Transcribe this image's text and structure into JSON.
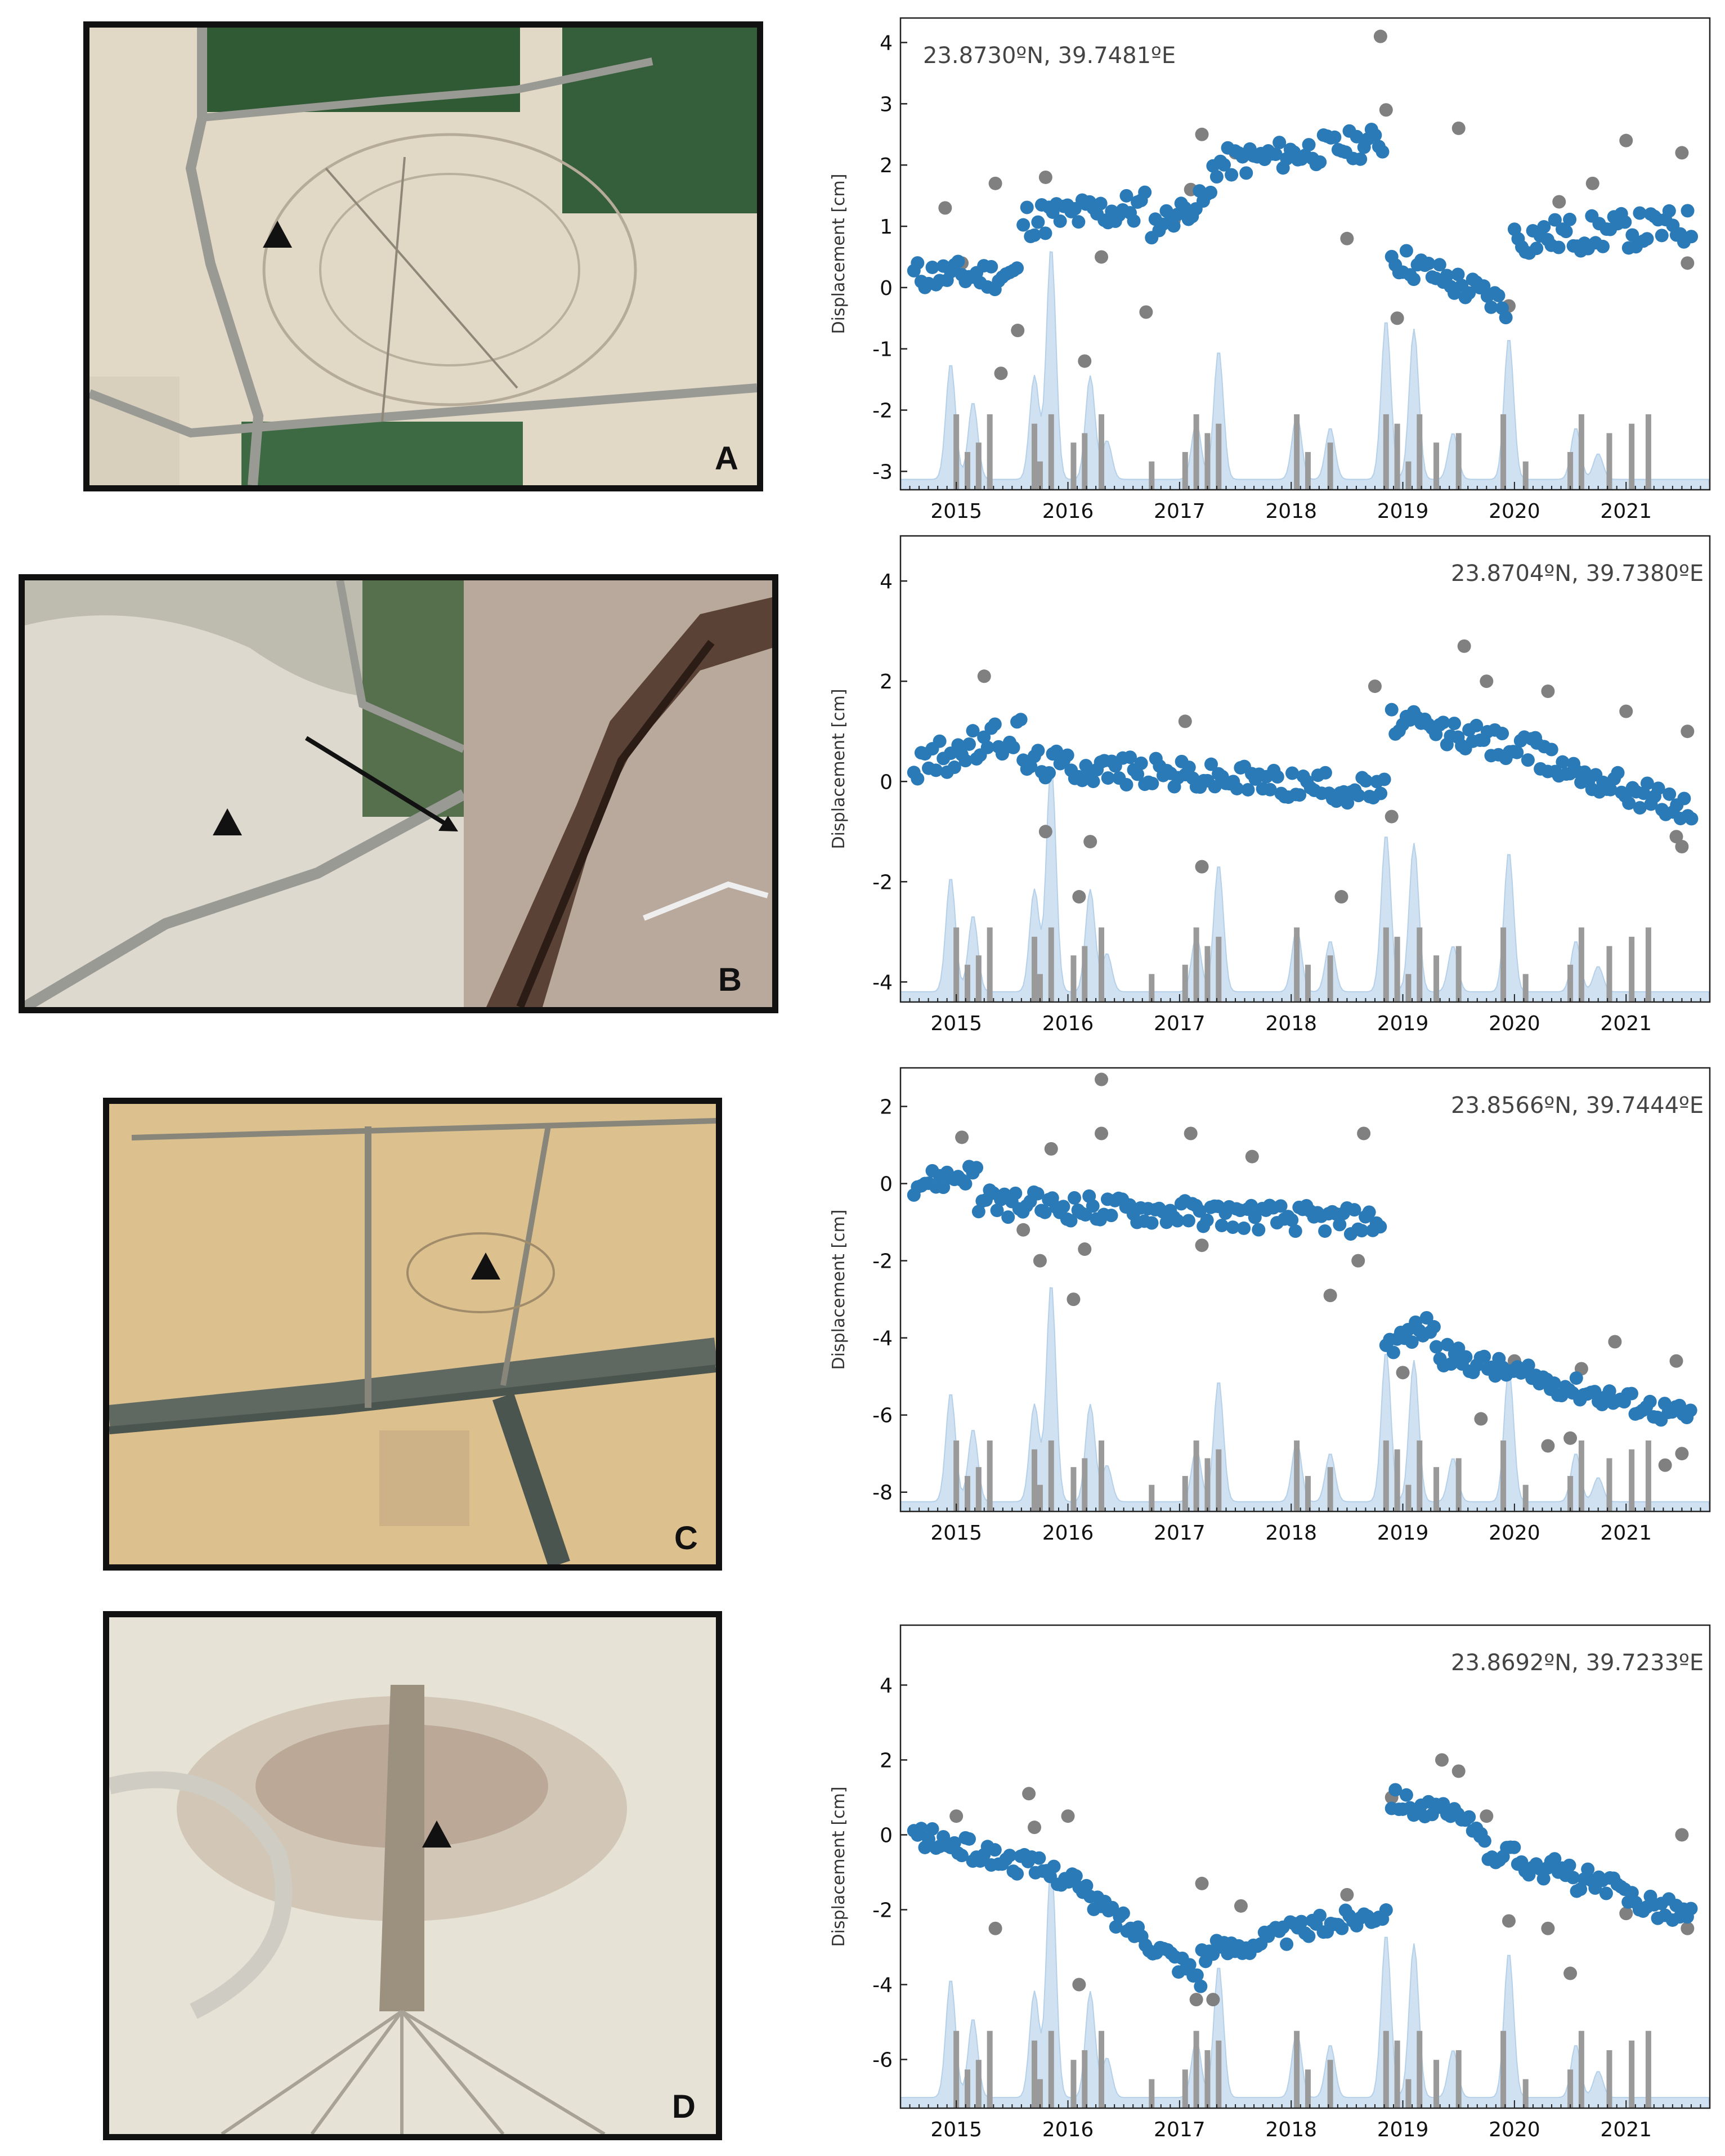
{
  "panels": [
    {
      "letter": "A"
    },
    {
      "letter": "B"
    },
    {
      "letter": "C"
    },
    {
      "letter": "D"
    }
  ],
  "colors": {
    "blue": "#2a7ab8",
    "gray": "#808080",
    "shade": "#c8dcf0",
    "shadeLine": "#a9c8e6",
    "bar": "#9a9a9a"
  },
  "chart_data": [
    {
      "type": "scatter",
      "title": "23.8730ºN, 39.7481ºE",
      "ylabel": "Displacement [cm]",
      "ylim": [
        -3.3,
        4.4
      ],
      "yticks": [
        -3,
        -2,
        -1,
        0,
        1,
        2,
        3,
        4
      ],
      "xlim": [
        2014.5,
        2021.75
      ],
      "xticks": [
        2015,
        2016,
        2017,
        2018,
        2019,
        2020,
        2021
      ],
      "series": [
        {
          "name": "blue",
          "segments": [
            {
              "x0": 2014.62,
              "x1": 2015.55,
              "y0": 0.2,
              "y1": 0.2,
              "amp": 0.25
            },
            {
              "x0": 2015.6,
              "x1": 2016.7,
              "y0": 1.1,
              "y1": 1.3,
              "amp": 0.3
            },
            {
              "x0": 2016.75,
              "x1": 2017.3,
              "y0": 1.0,
              "y1": 1.5,
              "amp": 0.2
            },
            {
              "x0": 2017.3,
              "x1": 2018.85,
              "y0": 2.0,
              "y1": 2.4,
              "amp": 0.25
            },
            {
              "x0": 2018.9,
              "x1": 2019.95,
              "y0": 0.5,
              "y1": -0.3,
              "amp": 0.25
            },
            {
              "x0": 2020.0,
              "x1": 2021.6,
              "y0": 0.8,
              "y1": 1.0,
              "amp": 0.3
            }
          ]
        },
        {
          "name": "gray",
          "points": [
            [
              2014.9,
              1.3
            ],
            [
              2015.05,
              0.4
            ],
            [
              2015.35,
              1.7
            ],
            [
              2015.4,
              -1.4
            ],
            [
              2015.55,
              -0.7
            ],
            [
              2015.8,
              1.8
            ],
            [
              2016.15,
              -1.2
            ],
            [
              2016.3,
              0.5
            ],
            [
              2016.7,
              -0.4
            ],
            [
              2016.95,
              1.1
            ],
            [
              2017.1,
              1.6
            ],
            [
              2017.2,
              2.5
            ],
            [
              2017.5,
              2.2
            ],
            [
              2018.5,
              0.8
            ],
            [
              2018.8,
              4.1
            ],
            [
              2018.85,
              2.9
            ],
            [
              2018.95,
              -0.5
            ],
            [
              2019.5,
              2.6
            ],
            [
              2019.95,
              -0.3
            ],
            [
              2020.4,
              1.4
            ],
            [
              2020.7,
              1.7
            ],
            [
              2021.0,
              2.4
            ],
            [
              2021.5,
              2.2
            ],
            [
              2021.55,
              0.4
            ]
          ]
        }
      ]
    },
    {
      "type": "scatter",
      "title": "23.8704ºN, 39.7380ºE",
      "ylabel": "Displacement [cm]",
      "ylim": [
        -4.4,
        4.9
      ],
      "yticks": [
        -4,
        -2,
        0,
        2,
        4
      ],
      "xlim": [
        2014.5,
        2021.75
      ],
      "xticks": [
        2015,
        2016,
        2017,
        2018,
        2019,
        2020,
        2021
      ],
      "series": [
        {
          "name": "blue",
          "segments": [
            {
              "x0": 2014.62,
              "x1": 2015.6,
              "y0": 0.3,
              "y1": 1.0,
              "amp": 0.35
            },
            {
              "x0": 2015.6,
              "x1": 2018.85,
              "y0": 0.4,
              "y1": -0.2,
              "amp": 0.3
            },
            {
              "x0": 2018.9,
              "x1": 2020.2,
              "y0": 1.2,
              "y1": 0.6,
              "amp": 0.3
            },
            {
              "x0": 2020.2,
              "x1": 2021.6,
              "y0": 0.5,
              "y1": -0.6,
              "amp": 0.3
            }
          ]
        },
        {
          "name": "gray",
          "points": [
            [
              2015.25,
              2.1
            ],
            [
              2015.8,
              -1.0
            ],
            [
              2016.1,
              -2.3
            ],
            [
              2016.2,
              -1.2
            ],
            [
              2017.05,
              1.2
            ],
            [
              2017.2,
              -1.7
            ],
            [
              2018.45,
              -2.3
            ],
            [
              2018.75,
              1.9
            ],
            [
              2018.9,
              -0.7
            ],
            [
              2019.55,
              2.7
            ],
            [
              2019.75,
              2.0
            ],
            [
              2020.3,
              1.8
            ],
            [
              2021.0,
              1.4
            ],
            [
              2021.45,
              -1.1
            ],
            [
              2021.55,
              1.0
            ],
            [
              2021.5,
              -1.3
            ]
          ]
        }
      ]
    },
    {
      "type": "scatter",
      "title": "23.8566ºN, 39.7444ºE",
      "ylabel": "Displacement [cm]",
      "ylim": [
        -8.5,
        3.0
      ],
      "yticks": [
        -8,
        -6,
        -4,
        -2,
        0,
        2
      ],
      "xlim": [
        2014.5,
        2021.75
      ],
      "xticks": [
        2015,
        2016,
        2017,
        2018,
        2019,
        2020,
        2021
      ],
      "series": [
        {
          "name": "blue",
          "segments": [
            {
              "x0": 2014.62,
              "x1": 2015.2,
              "y0": 0.0,
              "y1": 0.3,
              "amp": 0.3
            },
            {
              "x0": 2015.2,
              "x1": 2018.8,
              "y0": -0.5,
              "y1": -1.0,
              "amp": 0.35
            },
            {
              "x0": 2018.85,
              "x1": 2019.3,
              "y0": -4.2,
              "y1": -3.6,
              "amp": 0.3
            },
            {
              "x0": 2019.3,
              "x1": 2021.6,
              "y0": -4.4,
              "y1": -6.1,
              "amp": 0.3
            }
          ]
        },
        {
          "name": "gray",
          "points": [
            [
              2015.05,
              1.2
            ],
            [
              2015.6,
              -1.2
            ],
            [
              2015.75,
              -2.0
            ],
            [
              2015.85,
              0.9
            ],
            [
              2016.05,
              -3.0
            ],
            [
              2016.3,
              2.7
            ],
            [
              2016.3,
              1.3
            ],
            [
              2016.15,
              -1.7
            ],
            [
              2017.1,
              1.3
            ],
            [
              2017.2,
              -1.6
            ],
            [
              2017.65,
              0.7
            ],
            [
              2018.35,
              -2.9
            ],
            [
              2018.6,
              -2.0
            ],
            [
              2018.65,
              1.3
            ],
            [
              2019.0,
              -4.9
            ],
            [
              2019.7,
              -6.1
            ],
            [
              2020.0,
              -4.6
            ],
            [
              2020.3,
              -6.8
            ],
            [
              2020.5,
              -6.6
            ],
            [
              2020.6,
              -4.8
            ],
            [
              2020.9,
              -4.1
            ],
            [
              2021.35,
              -7.3
            ],
            [
              2021.45,
              -4.6
            ],
            [
              2021.5,
              -7.0
            ]
          ]
        }
      ]
    },
    {
      "type": "scatter",
      "title": "23.8692ºN, 39.7233ºE",
      "ylabel": "Displacement [cm]",
      "ylim": [
        -7.3,
        5.6
      ],
      "yticks": [
        -6,
        -4,
        -2,
        0,
        2,
        4
      ],
      "xlim": [
        2014.5,
        2021.75
      ],
      "xticks": [
        2015,
        2016,
        2017,
        2018,
        2019,
        2020,
        2021
      ],
      "series": [
        {
          "name": "blue",
          "segments": [
            {
              "x0": 2014.62,
              "x1": 2016.1,
              "y0": 0.0,
              "y1": -1.2,
              "amp": 0.3
            },
            {
              "x0": 2016.1,
              "x1": 2017.2,
              "y0": -1.5,
              "y1": -3.8,
              "amp": 0.3
            },
            {
              "x0": 2017.2,
              "x1": 2018.85,
              "y0": -3.2,
              "y1": -2.0,
              "amp": 0.3
            },
            {
              "x0": 2018.9,
              "x1": 2019.7,
              "y0": 1.0,
              "y1": 0.2,
              "amp": 0.3
            },
            {
              "x0": 2019.7,
              "x1": 2021.6,
              "y0": -0.3,
              "y1": -2.2,
              "amp": 0.35
            }
          ]
        },
        {
          "name": "gray",
          "points": [
            [
              2015.0,
              0.5
            ],
            [
              2015.35,
              -2.5
            ],
            [
              2015.65,
              1.1
            ],
            [
              2015.7,
              0.2
            ],
            [
              2016.0,
              0.5
            ],
            [
              2016.1,
              -4.0
            ],
            [
              2017.15,
              -4.4
            ],
            [
              2017.2,
              -1.3
            ],
            [
              2017.3,
              -4.4
            ],
            [
              2017.55,
              -1.9
            ],
            [
              2018.5,
              -1.6
            ],
            [
              2018.9,
              1.0
            ],
            [
              2019.35,
              2.0
            ],
            [
              2019.5,
              1.7
            ],
            [
              2019.75,
              0.5
            ],
            [
              2019.95,
              -2.3
            ],
            [
              2020.3,
              -2.5
            ],
            [
              2020.5,
              -3.7
            ],
            [
              2021.0,
              -2.1
            ],
            [
              2021.5,
              0.0
            ],
            [
              2021.55,
              -2.5
            ]
          ]
        }
      ]
    }
  ]
}
